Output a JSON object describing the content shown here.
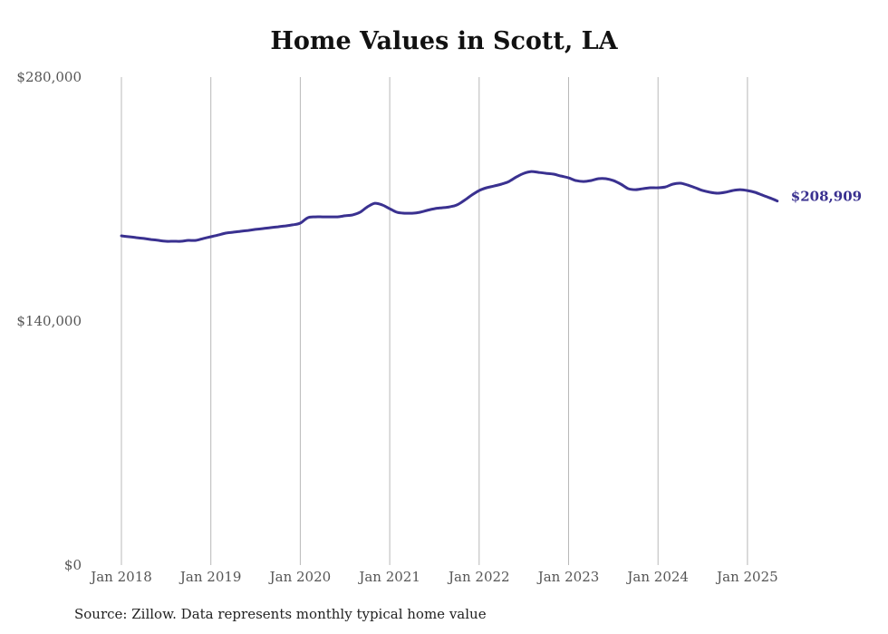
{
  "chart_data": {
    "type": "line",
    "title": "Home Values in Scott, LA",
    "xlabel": "",
    "ylabel": "",
    "ylim": [
      0,
      280000
    ],
    "yticks": [
      0,
      140000,
      280000
    ],
    "ytick_labels": [
      "$0",
      "$140,000",
      "$280,000"
    ],
    "xticks": [
      "2018-01",
      "2019-01",
      "2020-01",
      "2021-01",
      "2022-01",
      "2023-01",
      "2024-01",
      "2025-01"
    ],
    "xtick_labels": [
      "Jan 2018",
      "Jan 2019",
      "Jan 2020",
      "Jan 2021",
      "Jan 2022",
      "Jan 2023",
      "Jan 2024",
      "Jan 2025"
    ],
    "grid": "vertical",
    "legend": "none",
    "start": "2018-01",
    "frequency": "monthly",
    "series": [
      {
        "name": "Typical home value",
        "color": "#3a3190",
        "values": [
          188900,
          188400,
          187900,
          187400,
          186800,
          186300,
          185800,
          185800,
          185800,
          186300,
          186300,
          187400,
          188400,
          189400,
          190500,
          191000,
          191500,
          192000,
          192600,
          193100,
          193600,
          194100,
          194600,
          195200,
          196200,
          199300,
          199800,
          199800,
          199800,
          199800,
          200400,
          200900,
          202400,
          205500,
          207600,
          206600,
          204500,
          202400,
          201900,
          201900,
          202400,
          203500,
          204500,
          205000,
          205500,
          206600,
          209200,
          212300,
          214900,
          216500,
          217500,
          218600,
          220100,
          222700,
          224800,
          225800,
          225300,
          224800,
          224300,
          223200,
          222200,
          220600,
          220100,
          220600,
          221700,
          221700,
          220600,
          218600,
          216000,
          215400,
          216000,
          216500,
          216500,
          217000,
          218600,
          219100,
          218000,
          216500,
          214900,
          213900,
          213400,
          213900,
          214900,
          215400,
          214900,
          213900,
          212300,
          210700,
          208909
        ]
      }
    ],
    "annotations": [
      {
        "text": "$208,909",
        "target": "last-point"
      }
    ]
  },
  "source_note": "Source: Zillow. Data represents monthly typical home value"
}
